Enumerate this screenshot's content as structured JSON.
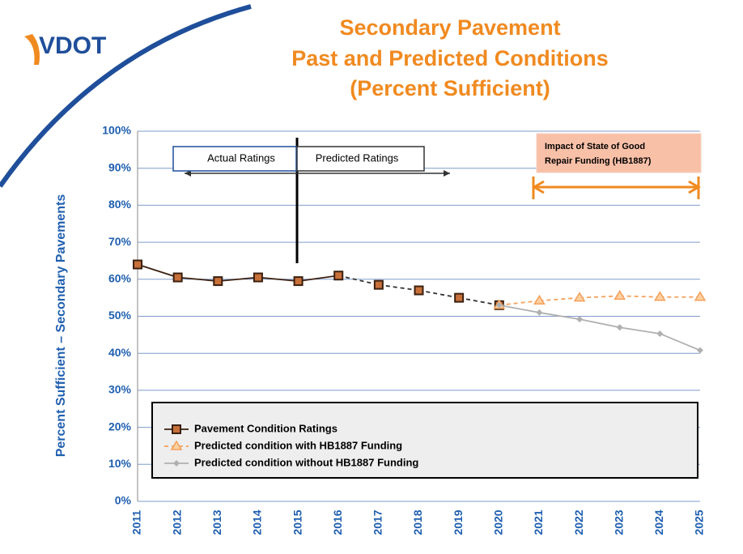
{
  "logo": "VDOT",
  "chart_data": {
    "type": "line",
    "title": [
      "Secondary Pavement",
      "Past and Predicted Conditions",
      "(Percent Sufficient)"
    ],
    "ylabel": "Percent Sufficient – Secondary Pavements",
    "categories": [
      "2011",
      "2012",
      "2013",
      "2014",
      "2015",
      "2016",
      "2017",
      "2018",
      "2019",
      "2020",
      "2021",
      "2022",
      "2023",
      "2024",
      "2025"
    ],
    "ylim": [
      0,
      100
    ],
    "yticks": [
      {
        "value": 0,
        "label": "0%"
      },
      {
        "value": 10,
        "label": "10%"
      },
      {
        "value": 20,
        "label": "20%"
      },
      {
        "value": 30,
        "label": "30%"
      },
      {
        "value": 40,
        "label": "40%"
      },
      {
        "value": 50,
        "label": "50%"
      },
      {
        "value": 60,
        "label": "60%"
      },
      {
        "value": 70,
        "label": "70%"
      },
      {
        "value": 80,
        "label": "80%"
      },
      {
        "value": 90,
        "label": "90%"
      },
      {
        "value": 100,
        "label": "100%"
      }
    ],
    "grid": true,
    "annotations": {
      "actual": "Actual Ratings",
      "predicted": "Predicted Ratings",
      "impact": [
        "Impact of State of Good",
        "Repair Funding (HB1887)"
      ]
    },
    "series": [
      {
        "name": "Pavement Condition Ratings",
        "color": "#3a2010",
        "marker": "square",
        "dashed_from": "2016",
        "values": [
          64,
          60.5,
          59.5,
          60.5,
          59.5,
          61,
          58.5,
          57,
          55,
          53,
          null,
          null,
          null,
          null,
          null
        ]
      },
      {
        "name": "Predicted condition with HB1887 Funding",
        "color": "#f5a05a",
        "marker": "triangle",
        "dashed_from": "2020",
        "values": [
          null,
          null,
          null,
          null,
          null,
          null,
          null,
          null,
          null,
          53,
          54.2,
          55,
          55.5,
          55.2,
          55.2
        ]
      },
      {
        "name": "Predicted condition without HB1887 Funding",
        "color": "#b0b0b0",
        "marker": "diamond",
        "values": [
          null,
          null,
          null,
          null,
          null,
          null,
          null,
          null,
          null,
          53,
          51,
          49.2,
          47,
          45.3,
          40.8
        ]
      }
    ]
  }
}
